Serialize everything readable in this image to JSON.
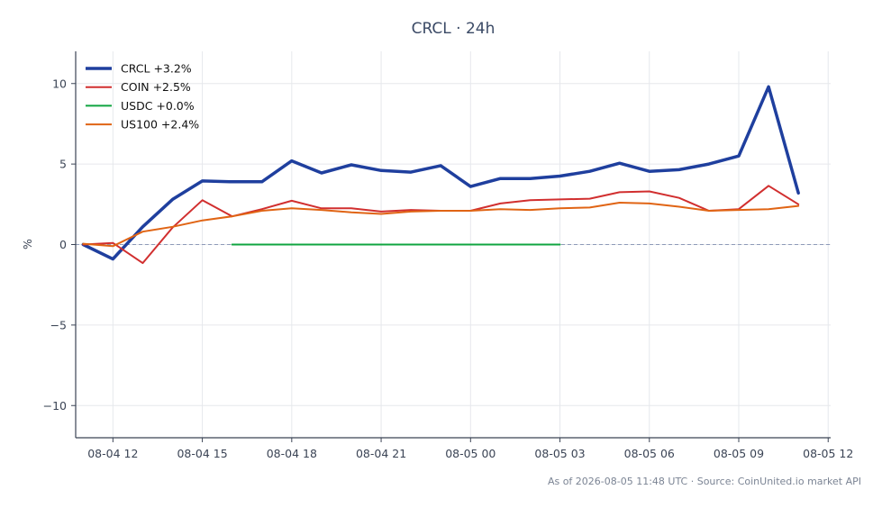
{
  "chart_data": {
    "type": "line",
    "title": "CRCL · 24h",
    "xlabel": "",
    "ylabel": "%",
    "ylim": [
      -12,
      12
    ],
    "yticks": [
      -10,
      -5,
      0,
      5,
      10
    ],
    "ytick_labels": [
      "−10",
      "−5",
      "0",
      "5",
      "10"
    ],
    "xlim": [
      "2026-08-04 10:45",
      "2026-08-05 12:05"
    ],
    "xticks": [
      "2026-08-04 12:00",
      "2026-08-04 15:00",
      "2026-08-04 18:00",
      "2026-08-04 21:00",
      "2026-08-05 00:00",
      "2026-08-05 03:00",
      "2026-08-05 06:00",
      "2026-08-05 09:00",
      "2026-08-05 12:00"
    ],
    "xtick_labels": [
      "08-04 12",
      "08-04 15",
      "08-04 18",
      "08-04 21",
      "08-05 00",
      "08-05 03",
      "08-05 06",
      "08-05 09",
      "08-05 12"
    ],
    "grid": true,
    "zero_line": true,
    "legend_position": "top-left",
    "series": [
      {
        "name": "CRCL +3.2%",
        "color": "#1f3f9e",
        "width": "thick",
        "x": [
          "2026-08-04 11:00",
          "2026-08-04 12:00",
          "2026-08-04 13:00",
          "2026-08-04 14:00",
          "2026-08-04 15:00",
          "2026-08-04 16:00",
          "2026-08-04 17:00",
          "2026-08-04 18:00",
          "2026-08-04 19:00",
          "2026-08-04 20:00",
          "2026-08-04 21:00",
          "2026-08-04 22:00",
          "2026-08-04 23:00",
          "2026-08-05 00:00",
          "2026-08-05 01:00",
          "2026-08-05 02:00",
          "2026-08-05 03:00",
          "2026-08-05 04:00",
          "2026-08-05 05:00",
          "2026-08-05 06:00",
          "2026-08-05 07:00",
          "2026-08-05 08:00",
          "2026-08-05 09:00",
          "2026-08-05 10:00",
          "2026-08-05 11:00"
        ],
        "y": [
          0.0,
          -0.9,
          1.1,
          2.8,
          3.95,
          3.9,
          3.9,
          5.2,
          4.45,
          4.95,
          4.6,
          4.5,
          4.9,
          3.6,
          4.1,
          4.1,
          4.25,
          4.55,
          5.05,
          4.55,
          4.65,
          5.0,
          5.5,
          9.8,
          3.2
        ]
      },
      {
        "name": "COIN +2.5%",
        "color": "#d12f2f",
        "width": "normal",
        "x": [
          "2026-08-04 11:00",
          "2026-08-04 12:00",
          "2026-08-04 13:00",
          "2026-08-04 14:00",
          "2026-08-04 15:00",
          "2026-08-04 16:00",
          "2026-08-04 17:00",
          "2026-08-04 18:00",
          "2026-08-04 19:00",
          "2026-08-04 20:00",
          "2026-08-04 21:00",
          "2026-08-04 22:00",
          "2026-08-04 23:00",
          "2026-08-05 00:00",
          "2026-08-05 01:00",
          "2026-08-05 02:00",
          "2026-08-05 03:00",
          "2026-08-05 04:00",
          "2026-08-05 05:00",
          "2026-08-05 06:00",
          "2026-08-05 07:00",
          "2026-08-05 08:00",
          "2026-08-05 09:00",
          "2026-08-05 10:00",
          "2026-08-05 11:00"
        ],
        "y": [
          0.0,
          0.1,
          -1.15,
          1.05,
          2.75,
          1.75,
          2.2,
          2.72,
          2.25,
          2.25,
          2.05,
          2.15,
          2.1,
          2.1,
          2.55,
          2.75,
          2.8,
          2.85,
          3.25,
          3.3,
          2.9,
          2.1,
          2.2,
          3.65,
          2.5
        ]
      },
      {
        "name": "USDC +0.0%",
        "color": "#10a540",
        "width": "normal",
        "x": [
          "2026-08-04 16:00",
          "2026-08-05 03:00"
        ],
        "y": [
          0.0,
          0.0
        ]
      },
      {
        "name": "US100 +2.4%",
        "color": "#e06414",
        "width": "normal",
        "x": [
          "2026-08-04 11:00",
          "2026-08-04 12:00",
          "2026-08-04 13:00",
          "2026-08-04 14:00",
          "2026-08-04 15:00",
          "2026-08-04 16:00",
          "2026-08-04 17:00",
          "2026-08-04 18:00",
          "2026-08-04 19:00",
          "2026-08-04 20:00",
          "2026-08-04 21:00",
          "2026-08-04 22:00",
          "2026-08-04 23:00",
          "2026-08-05 00:00",
          "2026-08-05 01:00",
          "2026-08-05 02:00",
          "2026-08-05 03:00",
          "2026-08-05 04:00",
          "2026-08-05 05:00",
          "2026-08-05 06:00",
          "2026-08-05 07:00",
          "2026-08-05 08:00",
          "2026-08-05 09:00",
          "2026-08-05 10:00",
          "2026-08-05 11:00"
        ],
        "y": [
          0.05,
          -0.1,
          0.8,
          1.1,
          1.5,
          1.75,
          2.1,
          2.25,
          2.15,
          2.0,
          1.9,
          2.05,
          2.1,
          2.1,
          2.2,
          2.15,
          2.25,
          2.3,
          2.6,
          2.55,
          2.35,
          2.1,
          2.15,
          2.2,
          2.4
        ]
      }
    ],
    "footer": "As of 2026-08-05 11:48 UTC · Source: CoinUnited.io market API"
  }
}
